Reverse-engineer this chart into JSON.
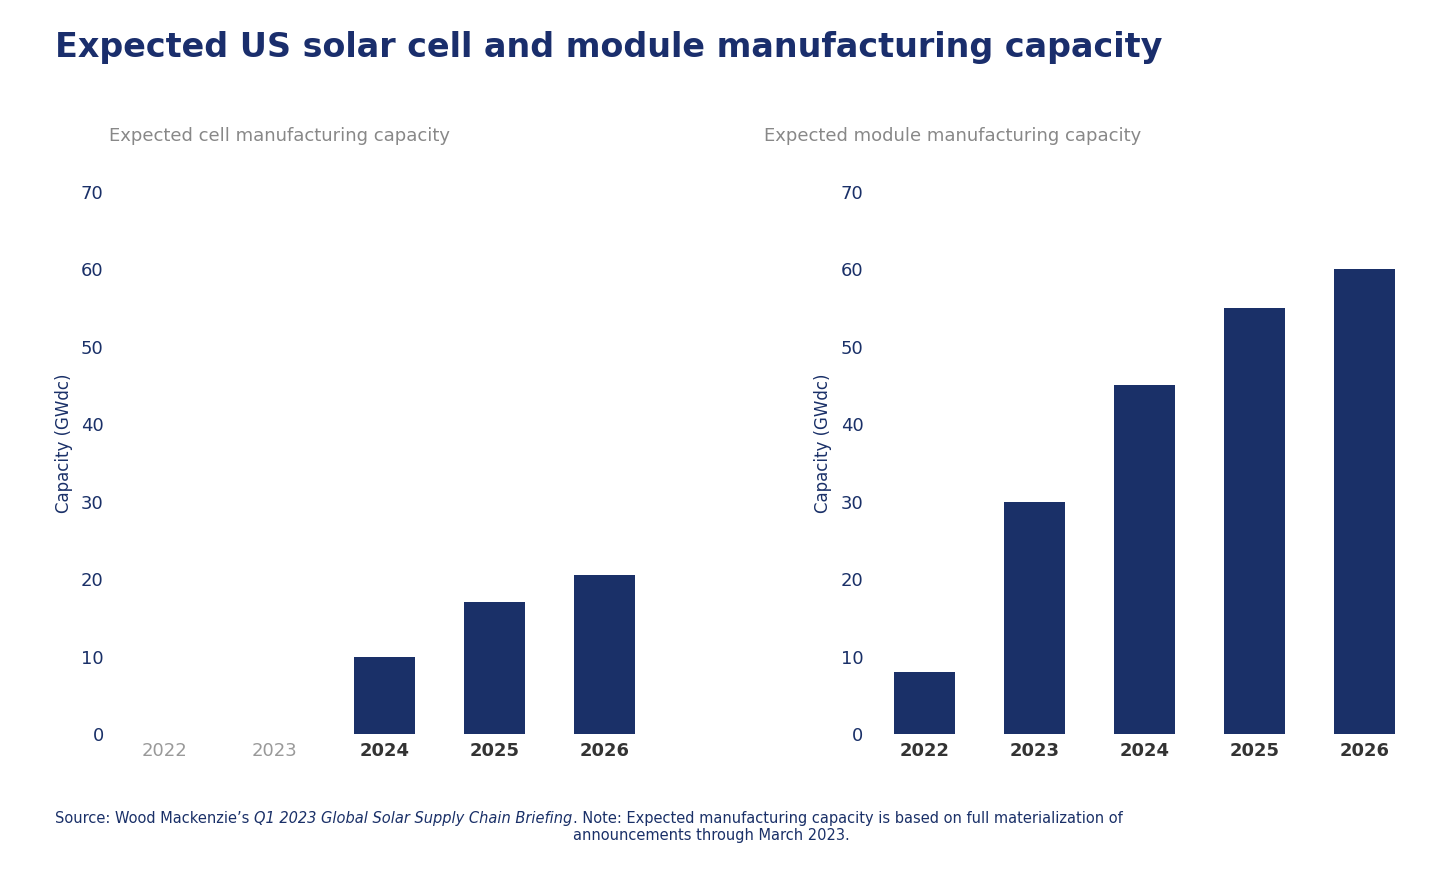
{
  "title": "Expected US solar cell and module manufacturing capacity",
  "title_color": "#1a2e6c",
  "title_fontsize": 24,
  "subtitle_left": "Expected cell manufacturing capacity",
  "subtitle_right": "Expected module manufacturing capacity",
  "subtitle_color": "#888888",
  "subtitle_fontsize": 13,
  "bar_color": "#1a3068",
  "categories": [
    "2022",
    "2023",
    "2024",
    "2025",
    "2026"
  ],
  "cell_values": [
    0,
    0,
    10,
    17,
    20.5
  ],
  "module_values": [
    8,
    30,
    45,
    55,
    60
  ],
  "ylabel": "Capacity (GWdc)",
  "ylabel_fontsize": 12,
  "ylabel_color": "#1a3068",
  "ylim_cell": [
    0,
    75
  ],
  "ylim_module": [
    0,
    75
  ],
  "yticks": [
    0,
    10,
    20,
    30,
    40,
    50,
    60,
    70
  ],
  "tick_fontsize": 13,
  "tick_color": "#1a3068",
  "xtick_color_normal": "#888888",
  "xtick_color_bold": "#333333",
  "background_color": "#ffffff",
  "footnote_part1": "Source: Wood Mackenzie’s ",
  "footnote_part2": "Q1 2023 Global Solar Supply Chain Briefing",
  "footnote_part3": ". Note: Expected manufacturing capacity is based on full materialization of\nannouncements through March 2023.",
  "footnote_color": "#1a3068",
  "footnote_fontsize": 10.5
}
